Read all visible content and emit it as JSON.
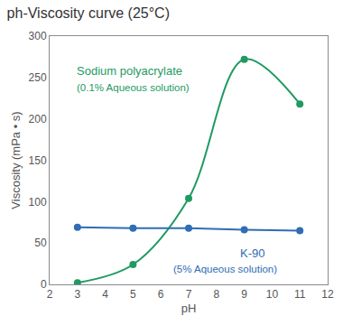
{
  "chart_data": {
    "type": "line",
    "title": "ph-Viscosity curve (25°C)",
    "x_label": "pH",
    "y_label": "Viscosity (mPa • s)",
    "x": [
      3,
      5,
      7,
      9,
      11
    ],
    "series": [
      {
        "name": "Sodium polyacrylate",
        "annotation": "(0.1% Aqueous solution)",
        "color": "#1f9a62",
        "marker": "circle",
        "line_style": "smooth",
        "values": [
          2,
          24,
          104,
          272,
          218
        ]
      },
      {
        "name": "K-90",
        "annotation": "(5% Aqueous solution)",
        "color": "#2f6db5",
        "marker": "circle",
        "line_style": "straight",
        "values": [
          69,
          68,
          68,
          66,
          65
        ]
      }
    ],
    "xlim": [
      2,
      12
    ],
    "xticks": [
      2,
      3,
      4,
      5,
      6,
      7,
      8,
      9,
      10,
      11,
      12
    ],
    "ylim": [
      0,
      300
    ],
    "yticks": [
      0,
      50,
      100,
      150,
      200,
      250,
      300
    ],
    "grid": false
  }
}
